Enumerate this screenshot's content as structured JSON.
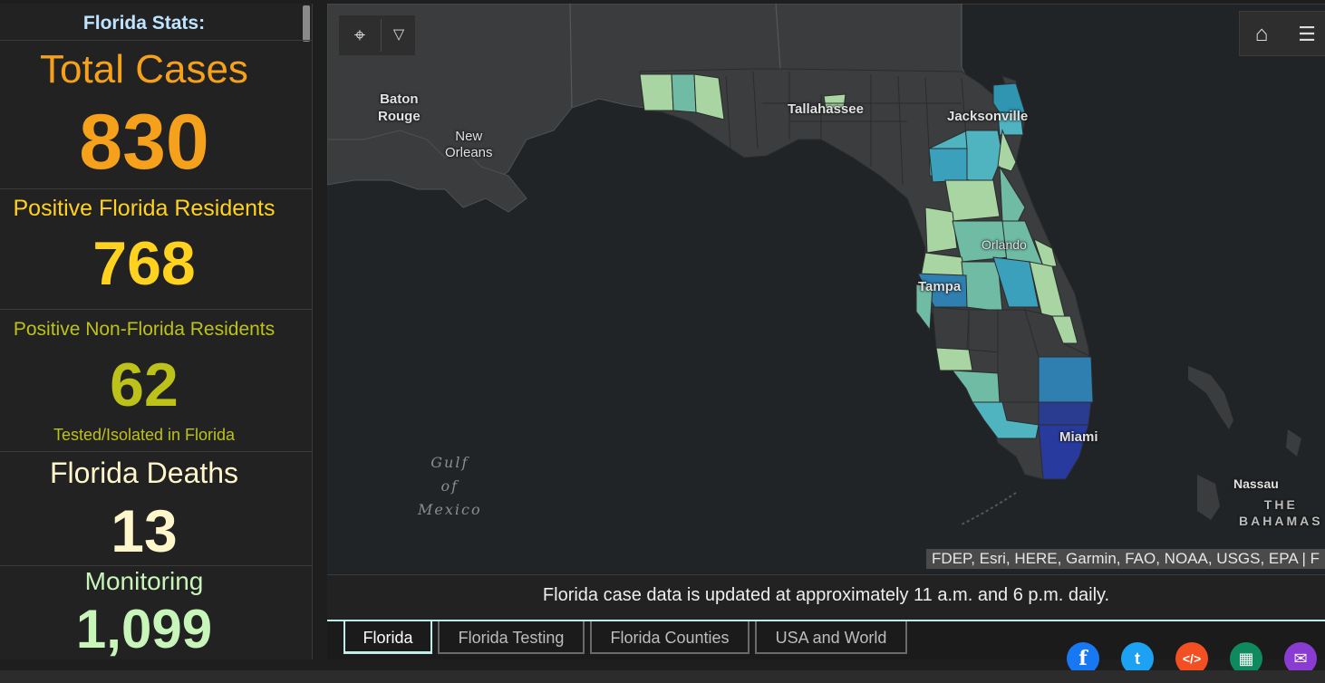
{
  "stats": {
    "title": "Florida Stats:",
    "total_cases": {
      "label": "Total Cases",
      "value": "830"
    },
    "positive_residents": {
      "label": "Positive Florida Residents",
      "value": "768"
    },
    "positive_non_residents": {
      "label": "Positive Non-Florida Residents",
      "value": "62",
      "sublabel": "Tested/Isolated in Florida"
    },
    "deaths": {
      "label": "Florida Deaths",
      "value": "13"
    },
    "monitoring": {
      "label": "Monitoring",
      "value": "1,099"
    }
  },
  "colors": {
    "total_cases": "#f5a11c",
    "positive_residents": "#ffd21f",
    "positive_non_residents": "#bcc21a",
    "deaths": "#fff6cc",
    "monitoring": "#c8f5b9"
  },
  "map": {
    "labels": {
      "baton_rouge": "Baton\nRouge",
      "new_orleans": "New\nOrleans",
      "tallahassee": "Tallahassee",
      "jacksonville": "Jacksonville",
      "orlando": "Orlando",
      "tampa": "Tampa",
      "miami": "Miami",
      "nassau": "Nassau",
      "bahamas": "THE\nBAHAMAS",
      "gulf": "Gulf\nof\nMexico"
    },
    "attribution": "FDEP, Esri, HERE, Garmin, FAO, NOAA, USGS, EPA | F",
    "tools": {
      "select": "select-cursor-icon",
      "dropdown": "chevron-down-icon",
      "home": "home-icon",
      "legend": "legend-list-icon"
    }
  },
  "notice": "Florida case data is updated at approximately 11 a.m. and 6 p.m. daily.",
  "tabs": [
    "Florida",
    "Florida Testing",
    "Florida Counties",
    "USA and World"
  ],
  "share": [
    {
      "icon": "facebook-icon",
      "glyph": "f",
      "color": "#1877f2"
    },
    {
      "icon": "twitter-icon",
      "glyph": "t",
      "color": "#1da1f2"
    },
    {
      "icon": "embed-code-icon",
      "glyph": "</>",
      "color": "#f25022"
    },
    {
      "icon": "qr-code-icon",
      "glyph": "▦",
      "color": "#0f8a5f"
    },
    {
      "icon": "email-icon",
      "glyph": "✉",
      "color": "#8a3bd1"
    }
  ]
}
